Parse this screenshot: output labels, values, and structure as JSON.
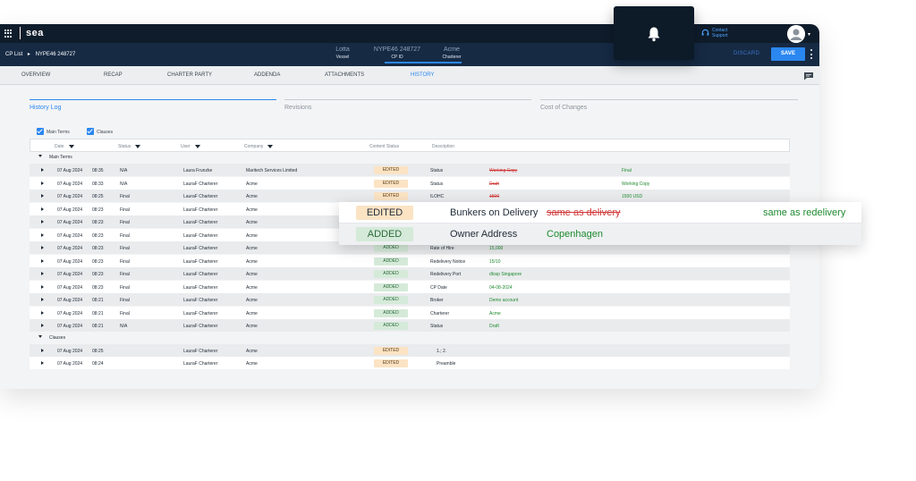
{
  "topbar": {
    "logo": "sea",
    "contact": {
      "line1": "Contact",
      "line2": "Support"
    },
    "colors": {
      "bg": "#0f1c2b",
      "accent": "#2b87f0"
    },
    "icons": [
      "apps-grid-icon",
      "bell-icon",
      "headset-icon",
      "user-avatar-icon"
    ]
  },
  "subbar": {
    "breadcrumb": [
      "CP List",
      "NYPE46 248727"
    ],
    "meta": [
      {
        "value": "Lotta",
        "label": "Vessel"
      },
      {
        "value": "NYPE46 248727",
        "label": "CP ID"
      },
      {
        "value": "Acme",
        "label": "Charterer"
      }
    ],
    "discard": "DISCARD",
    "save": "SAVE"
  },
  "tabs": [
    "OVERVIEW",
    "RECAP",
    "CHARTER PARTY",
    "ADDENDA",
    "ATTACHMENTS",
    "HISTORY"
  ],
  "active_tab": "HISTORY",
  "panel_tabs": [
    "History Log",
    "Revisions",
    "Cost of Changes"
  ],
  "filters": {
    "main_terms": "Main Terms",
    "clauses": "Clauses"
  },
  "columns": [
    "Date",
    "Status",
    "User",
    "Company",
    "Content Status",
    "Description"
  ],
  "groups": {
    "main_terms": "Main Terms",
    "clauses": "Clauses"
  },
  "main_rows": [
    {
      "date": "07 Aug 2024",
      "time": "08:35",
      "status": "N/A",
      "user": "Laura Frunzke",
      "company": "Maritech Services Limited",
      "content": "EDITED",
      "desc": "Status",
      "old": "Working Copy",
      "new": "Final"
    },
    {
      "date": "07 Aug 2024",
      "time": "08:33",
      "status": "N/A",
      "user": "LauraF Charterer",
      "company": "Acme",
      "content": "EDITED",
      "desc": "Status",
      "old": "Draft",
      "new": "Working Copy"
    },
    {
      "date": "07 Aug 2024",
      "time": "08:25",
      "status": "Final",
      "user": "LauraF Charterer",
      "company": "Acme",
      "content": "EDITED",
      "desc": "ILOHC",
      "old": "1500",
      "new": "1500 USD"
    },
    {
      "date": "07 Aug 2024",
      "time": "08:23",
      "status": "Final",
      "user": "LauraF Charterer",
      "company": "Acme",
      "content": "",
      "desc": "",
      "old": "",
      "new": ""
    },
    {
      "date": "07 Aug 2024",
      "time": "08:23",
      "status": "Final",
      "user": "LauraF Charterer",
      "company": "Acme",
      "content": "",
      "desc": "",
      "old": "",
      "new": ""
    },
    {
      "date": "07 Aug 2024",
      "time": "08:23",
      "status": "Final",
      "user": "LauraF Charterer",
      "company": "Acme",
      "content": "",
      "desc": "",
      "old": "",
      "new": ""
    },
    {
      "date": "07 Aug 2024",
      "time": "08:23",
      "status": "Final",
      "user": "LauraF Charterer",
      "company": "Acme",
      "content": "ADDED",
      "desc": "Rate of Hire",
      "old": "",
      "new": "15,000"
    },
    {
      "date": "07 Aug 2024",
      "time": "08:23",
      "status": "Final",
      "user": "LauraF Charterer",
      "company": "Acme",
      "content": "ADDED",
      "desc": "Redelivery Notice",
      "old": "",
      "new": "15/10"
    },
    {
      "date": "07 Aug 2024",
      "time": "08:23",
      "status": "Final",
      "user": "LauraF Charterer",
      "company": "Acme",
      "content": "ADDED",
      "desc": "Redelivery Port",
      "old": "",
      "new": "dlosp Singapore"
    },
    {
      "date": "07 Aug 2024",
      "time": "08:23",
      "status": "Final",
      "user": "LauraF Charterer",
      "company": "Acme",
      "content": "ADDED",
      "desc": "CP Date",
      "old": "",
      "new": "04-08-2024"
    },
    {
      "date": "07 Aug 2024",
      "time": "08:21",
      "status": "Final",
      "user": "LauraF Charterer",
      "company": "Acme",
      "content": "ADDED",
      "desc": "Broker",
      "old": "",
      "new": "Demo account"
    },
    {
      "date": "07 Aug 2024",
      "time": "08:21",
      "status": "Final",
      "user": "LauraF Charterer",
      "company": "Acme",
      "content": "ADDED",
      "desc": "Charterer",
      "old": "",
      "new": "Acme"
    },
    {
      "date": "07 Aug 2024",
      "time": "08:21",
      "status": "N/A",
      "user": "LauraF Charterer",
      "company": "Acme",
      "content": "ADDED",
      "desc": "Status",
      "old": "",
      "new": "Draft"
    }
  ],
  "clause_rows": [
    {
      "date": "07 Aug 2024",
      "time": "08:25",
      "status": "",
      "user": "LauraF Charterer",
      "company": "Acme",
      "content": "EDITED",
      "desc": "1.; 2.",
      "old": "",
      "new": ""
    },
    {
      "date": "07 Aug 2024",
      "time": "08:24",
      "status": "",
      "user": "LauraF Charterer",
      "company": "Acme",
      "content": "EDITED",
      "desc": "Preamble",
      "old": "",
      "new": ""
    }
  ],
  "overlay": [
    {
      "content": "EDITED",
      "desc": "Bunkers on Delivery",
      "old": "same as delivery",
      "new": "same as redelivery"
    },
    {
      "content": "ADDED",
      "desc": "Owner Address",
      "old": "",
      "new": "Copenhagen"
    }
  ]
}
